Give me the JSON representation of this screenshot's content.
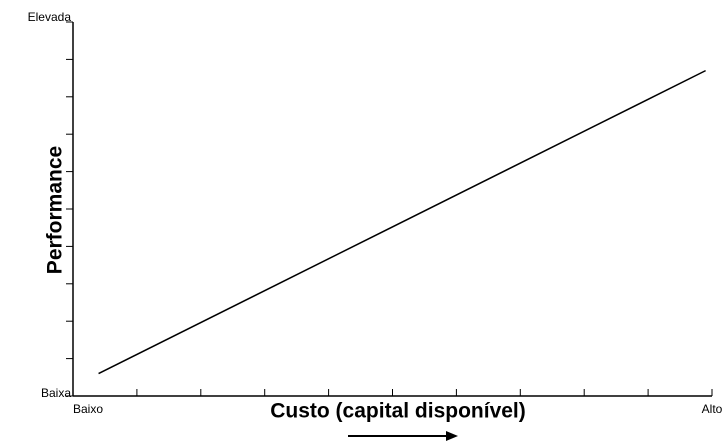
{
  "chart_data": {
    "type": "line",
    "xlabel": "Custo (capital disponível)",
    "ylabel": "Performance",
    "series": [
      {
        "name": null,
        "color": "#000000",
        "x": [
          0.4,
          9.9
        ],
        "values": [
          0.6,
          8.7
        ]
      }
    ],
    "xlim": [
      0,
      10
    ],
    "xticks": [
      {
        "value": 0,
        "label": "Baixo"
      },
      {
        "value": 1,
        "label": null
      },
      {
        "value": 2,
        "label": null
      },
      {
        "value": 3,
        "label": null
      },
      {
        "value": 4,
        "label": null
      },
      {
        "value": 5,
        "label": null
      },
      {
        "value": 6,
        "label": null
      },
      {
        "value": 7,
        "label": null
      },
      {
        "value": 8,
        "label": null
      },
      {
        "value": 9,
        "label": null
      },
      {
        "value": 10,
        "label": "Alto"
      }
    ],
    "ylim": [
      0,
      10
    ],
    "yticks": [
      {
        "value": 0,
        "label": "Baixa"
      },
      {
        "value": 1,
        "label": null
      },
      {
        "value": 2,
        "label": null
      },
      {
        "value": 3,
        "label": null
      },
      {
        "value": 4,
        "label": null
      },
      {
        "value": 5,
        "label": null
      },
      {
        "value": 6,
        "label": null
      },
      {
        "value": 7,
        "label": null
      },
      {
        "value": 8,
        "label": null
      },
      {
        "value": 9,
        "label": null
      },
      {
        "value": 10,
        "label": "Elevada"
      }
    ]
  }
}
